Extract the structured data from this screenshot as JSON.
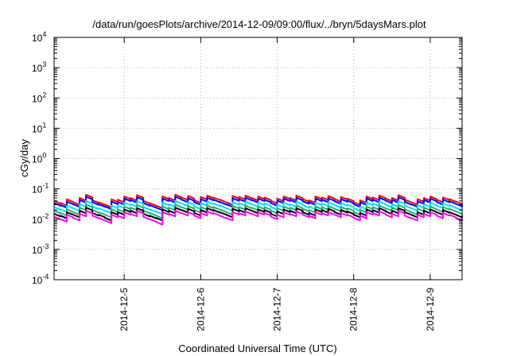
{
  "chart_data": {
    "type": "line",
    "title": "/data/run/goesPlots/archive/2014-12-09/09:00/flux/../bryn/5daysMars.plot",
    "xlabel": "Coordinated Universal Time (UTC)",
    "ylabel": "cGy/day",
    "yscale": "log",
    "ylim": [
      0.0001,
      10000
    ],
    "xlim": [
      "2014-12-04T02:00",
      "2014-12-09T10:00"
    ],
    "grid": true,
    "x_ticks": [
      "2014-12-5",
      "2014-12-6",
      "2014-12-7",
      "2014-12-8",
      "2014-12-9"
    ],
    "x_tick_values": [
      "2014-12-05",
      "2014-12-06",
      "2014-12-07",
      "2014-12-08",
      "2014-12-09"
    ],
    "y_ticks": [
      {
        "base": "10",
        "exp": "-4"
      },
      {
        "base": "10",
        "exp": "-3"
      },
      {
        "base": "10",
        "exp": "-2"
      },
      {
        "base": "10",
        "exp": "-1"
      },
      {
        "base": "10",
        "exp": "0"
      },
      {
        "base": "10",
        "exp": "1"
      },
      {
        "base": "10",
        "exp": "2"
      },
      {
        "base": "10",
        "exp": "3"
      },
      {
        "base": "10",
        "exp": "4"
      }
    ],
    "y_tick_values": [
      0.0001,
      0.001,
      0.01,
      0.1,
      1,
      10,
      100,
      1000,
      10000
    ],
    "x": [
      "2014-12-04T02:00",
      "2014-12-04T04:00",
      "2014-12-04T06:00",
      "2014-12-04T08:00",
      "2014-12-04T10:00",
      "2014-12-04T12:00",
      "2014-12-04T14:00",
      "2014-12-04T16:00",
      "2014-12-04T18:00",
      "2014-12-04T20:00",
      "2014-12-04T22:00",
      "2014-12-05T00:00",
      "2014-12-05T02:00",
      "2014-12-05T04:00",
      "2014-12-05T06:00",
      "2014-12-05T08:00",
      "2014-12-05T10:00",
      "2014-12-05T12:00",
      "2014-12-05T14:00",
      "2014-12-05T16:00",
      "2014-12-05T18:00",
      "2014-12-05T20:00",
      "2014-12-05T22:00",
      "2014-12-06T00:00",
      "2014-12-06T02:00",
      "2014-12-06T04:00",
      "2014-12-06T06:00",
      "2014-12-06T08:00",
      "2014-12-06T10:00",
      "2014-12-06T12:00",
      "2014-12-06T14:00",
      "2014-12-06T16:00",
      "2014-12-06T18:00",
      "2014-12-06T20:00",
      "2014-12-06T22:00",
      "2014-12-07T00:00",
      "2014-12-07T02:00",
      "2014-12-07T04:00",
      "2014-12-07T06:00",
      "2014-12-07T08:00",
      "2014-12-07T10:00",
      "2014-12-07T12:00",
      "2014-12-07T14:00",
      "2014-12-07T16:00",
      "2014-12-07T18:00",
      "2014-12-07T20:00",
      "2014-12-07T22:00",
      "2014-12-08T00:00",
      "2014-12-08T02:00",
      "2014-12-08T04:00",
      "2014-12-08T06:00",
      "2014-12-08T08:00",
      "2014-12-08T10:00",
      "2014-12-08T12:00",
      "2014-12-08T14:00",
      "2014-12-08T16:00",
      "2014-12-08T18:00",
      "2014-12-08T20:00",
      "2014-12-08T22:00",
      "2014-12-09T00:00",
      "2014-12-09T02:00",
      "2014-12-09T04:00",
      "2014-12-09T06:00",
      "2014-12-09T08:00",
      "2014-12-09T10:00"
    ],
    "series": [
      {
        "color": "#ff0000",
        "values": [
          0.04,
          0.034,
          0.045,
          0.036,
          0.05,
          0.064,
          0.042,
          0.036,
          0.03,
          0.045,
          0.044,
          0.056,
          0.05,
          0.062,
          0.04,
          0.034,
          0.028,
          0.056,
          0.05,
          0.064,
          0.052,
          0.058,
          0.042,
          0.054,
          0.06,
          0.052,
          0.044,
          0.036,
          0.058,
          0.054,
          0.06,
          0.05,
          0.056,
          0.052,
          0.04,
          0.048,
          0.056,
          0.05,
          0.06,
          0.046,
          0.042,
          0.056,
          0.052,
          0.058,
          0.046,
          0.054,
          0.048,
          0.036,
          0.042,
          0.056,
          0.052,
          0.06,
          0.048,
          0.05,
          0.062,
          0.044,
          0.036,
          0.046,
          0.05,
          0.056,
          0.044,
          0.052,
          0.046,
          0.038,
          0.034
        ]
      },
      {
        "color": "#0000ff",
        "values": [
          0.034,
          0.029,
          0.038,
          0.031,
          0.043,
          0.055,
          0.036,
          0.031,
          0.026,
          0.038,
          0.037,
          0.048,
          0.043,
          0.053,
          0.034,
          0.029,
          0.024,
          0.048,
          0.043,
          0.055,
          0.044,
          0.049,
          0.036,
          0.046,
          0.051,
          0.044,
          0.037,
          0.031,
          0.049,
          0.046,
          0.051,
          0.043,
          0.048,
          0.044,
          0.034,
          0.041,
          0.048,
          0.043,
          0.051,
          0.039,
          0.036,
          0.048,
          0.044,
          0.049,
          0.039,
          0.046,
          0.041,
          0.031,
          0.036,
          0.048,
          0.044,
          0.051,
          0.041,
          0.043,
          0.053,
          0.037,
          0.031,
          0.039,
          0.043,
          0.048,
          0.037,
          0.044,
          0.039,
          0.032,
          0.029
        ]
      },
      {
        "color": "#00e0ff",
        "values": [
          0.025,
          0.021,
          0.028,
          0.023,
          0.031,
          0.04,
          0.026,
          0.023,
          0.019,
          0.028,
          0.028,
          0.035,
          0.031,
          0.039,
          0.025,
          0.021,
          0.018,
          0.035,
          0.031,
          0.04,
          0.033,
          0.036,
          0.026,
          0.034,
          0.038,
          0.033,
          0.028,
          0.023,
          0.036,
          0.034,
          0.038,
          0.031,
          0.035,
          0.033,
          0.025,
          0.03,
          0.035,
          0.031,
          0.038,
          0.029,
          0.026,
          0.035,
          0.033,
          0.036,
          0.029,
          0.034,
          0.03,
          0.023,
          0.026,
          0.035,
          0.033,
          0.038,
          0.03,
          0.031,
          0.039,
          0.028,
          0.023,
          0.029,
          0.031,
          0.035,
          0.028,
          0.033,
          0.029,
          0.024,
          0.021
        ]
      },
      {
        "color": "#20b070",
        "values": [
          0.019,
          0.016,
          0.021,
          0.017,
          0.024,
          0.03,
          0.02,
          0.017,
          0.014,
          0.021,
          0.021,
          0.026,
          0.024,
          0.029,
          0.019,
          0.016,
          0.013,
          0.026,
          0.024,
          0.03,
          0.025,
          0.027,
          0.02,
          0.025,
          0.028,
          0.025,
          0.021,
          0.017,
          0.027,
          0.025,
          0.028,
          0.024,
          0.026,
          0.025,
          0.019,
          0.023,
          0.026,
          0.024,
          0.028,
          0.022,
          0.02,
          0.026,
          0.025,
          0.027,
          0.022,
          0.025,
          0.023,
          0.017,
          0.02,
          0.026,
          0.025,
          0.028,
          0.023,
          0.024,
          0.029,
          0.021,
          0.017,
          0.022,
          0.024,
          0.026,
          0.021,
          0.025,
          0.022,
          0.018,
          0.016
        ]
      },
      {
        "color": "#000000",
        "values": [
          0.015,
          0.013,
          0.017,
          0.014,
          0.019,
          0.024,
          0.016,
          0.014,
          0.011,
          0.017,
          0.017,
          0.021,
          0.019,
          0.023,
          0.015,
          0.013,
          0.011,
          0.021,
          0.019,
          0.024,
          0.02,
          0.022,
          0.016,
          0.02,
          0.023,
          0.02,
          0.017,
          0.014,
          0.022,
          0.02,
          0.023,
          0.019,
          0.021,
          0.02,
          0.015,
          0.018,
          0.021,
          0.019,
          0.023,
          0.017,
          0.016,
          0.021,
          0.02,
          0.022,
          0.017,
          0.02,
          0.018,
          0.014,
          0.016,
          0.021,
          0.02,
          0.023,
          0.018,
          0.019,
          0.023,
          0.017,
          0.014,
          0.017,
          0.019,
          0.021,
          0.017,
          0.02,
          0.017,
          0.014,
          0.013
        ]
      },
      {
        "color": "#ff00ff",
        "values": [
          0.012,
          0.01,
          0.014,
          0.011,
          0.015,
          0.019,
          0.013,
          0.011,
          0.009,
          0.014,
          0.013,
          0.017,
          0.015,
          0.019,
          0.012,
          0.01,
          0.008,
          0.017,
          0.015,
          0.019,
          0.016,
          0.017,
          0.013,
          0.016,
          0.018,
          0.016,
          0.013,
          0.011,
          0.017,
          0.016,
          0.018,
          0.015,
          0.017,
          0.016,
          0.012,
          0.014,
          0.017,
          0.015,
          0.018,
          0.014,
          0.013,
          0.017,
          0.016,
          0.017,
          0.014,
          0.016,
          0.014,
          0.011,
          0.013,
          0.017,
          0.016,
          0.018,
          0.014,
          0.015,
          0.019,
          0.013,
          0.011,
          0.014,
          0.015,
          0.017,
          0.013,
          0.016,
          0.014,
          0.011,
          0.01
        ]
      }
    ]
  }
}
